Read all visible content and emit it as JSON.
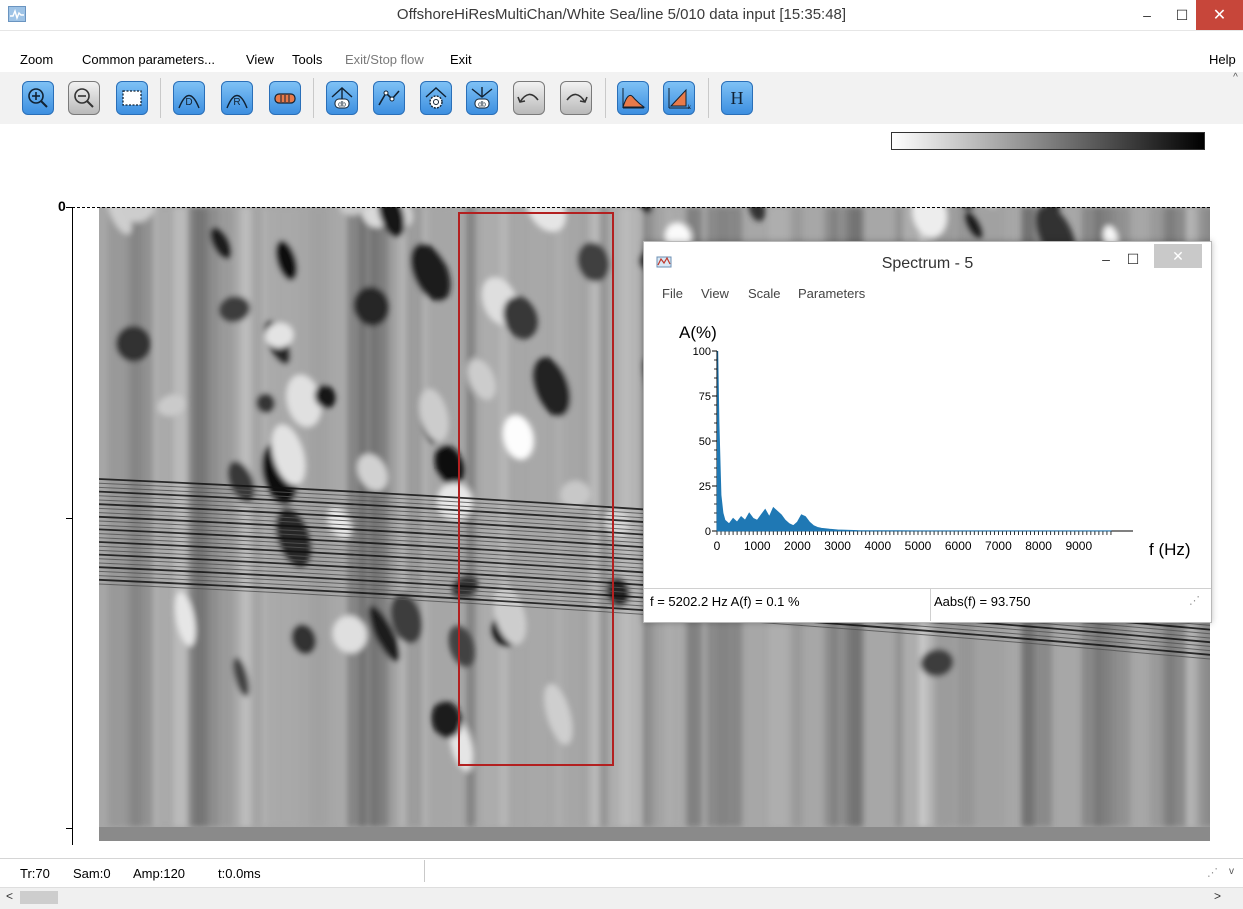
{
  "window": {
    "title": "OffshoreHiResMultiChan/White Sea/line 5/010 data input        [15:35:48]",
    "minimize": "–",
    "maximize": "☐",
    "close": "✕",
    "app_icon": "waveform-app-icon"
  },
  "menubar": {
    "items": [
      {
        "label": "Zoom"
      },
      {
        "label": "Common parameters..."
      },
      {
        "label": "View"
      },
      {
        "label": "Tools"
      },
      {
        "label": "Exit/Stop flow"
      },
      {
        "label": "Exit"
      }
    ],
    "help": "Help"
  },
  "toolbar": {
    "icons": [
      "zoom-in-icon",
      "zoom-out-icon",
      "fit-window-icon",
      "curve-d-icon",
      "curve-r-icon",
      "gain-bar-icon",
      "db-up-icon",
      "polyline-icon",
      "settings-gear-icon",
      "db-down-icon",
      "undo-icon",
      "redo-icon",
      "spectrum-icon",
      "fk-filter-icon",
      "header-h-icon"
    ],
    "h_label": "H",
    "d_label": "D",
    "r_label": "R",
    "db_label": "db",
    "k_label": "k"
  },
  "colorbar": {
    "from": "#ffffff",
    "to": "#000000"
  },
  "plot": {
    "time_axis_zero": "0",
    "selection_color": "#b32020"
  },
  "status": {
    "tr": "Tr:70",
    "sam": "Sam:0",
    "amp": "Amp:120",
    "t": "t:0.0ms"
  },
  "spectrum_window": {
    "title": "Spectrum - 5",
    "minimize": "–",
    "maximize": "☐",
    "close": "✕",
    "menu": [
      {
        "label": "File"
      },
      {
        "label": "View"
      },
      {
        "label": "Scale"
      },
      {
        "label": "Parameters"
      }
    ],
    "status_left": "f = 5202.2 Hz  A(f) =   0.1 %",
    "status_right": "Aabs(f) =  93.750",
    "accent": "#1f78b4"
  },
  "chart_data": {
    "type": "area",
    "ylabel": "A(%)",
    "xlabel": "f (Hz)",
    "ylim": [
      0,
      100
    ],
    "xlim": [
      0,
      10000
    ],
    "yticks": [
      0,
      25,
      50,
      75,
      100
    ],
    "xticks": [
      0,
      1000,
      2000,
      3000,
      4000,
      5000,
      6000,
      7000,
      8000,
      9000
    ],
    "grid": false,
    "series": [
      {
        "x": [
          0,
          20,
          50,
          100,
          150,
          200,
          300,
          400,
          500,
          600,
          700,
          800,
          900,
          1000,
          1100,
          1200,
          1300,
          1400,
          1500,
          1600,
          1700,
          1800,
          1900,
          2000,
          2100,
          2200,
          2300,
          2400,
          2500,
          2600,
          2800,
          3000,
          3500,
          4000,
          5000,
          6000,
          7000,
          8000,
          9000,
          9800
        ],
        "y": [
          0,
          100,
          60,
          20,
          10,
          6,
          4,
          7,
          5,
          8,
          6,
          10,
          7,
          6,
          9,
          12,
          8,
          13,
          11,
          9,
          6,
          4,
          3,
          5,
          9,
          8,
          5,
          3,
          2,
          1.5,
          1,
          0.6,
          0.3,
          0.2,
          0.1,
          0.1,
          0.1,
          0.1,
          0.1,
          0.1
        ]
      }
    ]
  }
}
